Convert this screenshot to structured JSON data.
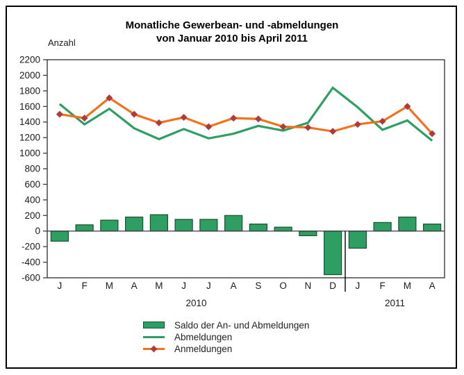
{
  "colors": {
    "green": "#2f9e63",
    "green_dark": "#15522f",
    "orange": "#f1711d",
    "marker_red": "#ad3c3c",
    "axis": "#3a3a3a",
    "text": "#1a1a1a",
    "background": "#ffffff"
  },
  "chart_data": {
    "type": "bar+line",
    "title_line1": "Monatliche Gewerbean- und -abmeldungen",
    "title_line2": "von Januar 2010 bis April 2011",
    "ylabel": "Anzahl",
    "xlabel": "",
    "ylim": [
      -600,
      2200
    ],
    "ytick_step": 200,
    "grid": false,
    "legend_position": "bottom",
    "categories": [
      "J",
      "F",
      "M",
      "A",
      "M",
      "J",
      "J",
      "A",
      "S",
      "O",
      "N",
      "D",
      "J",
      "F",
      "M",
      "A"
    ],
    "year_groups": [
      {
        "label": "2010",
        "months": 12
      },
      {
        "label": "2011",
        "months": 4
      }
    ],
    "series": [
      {
        "name": "Saldo der An- und Abmeldungen",
        "type": "bar",
        "values": [
          -130,
          80,
          140,
          180,
          210,
          150,
          150,
          200,
          90,
          50,
          -60,
          -560,
          -220,
          110,
          180,
          90
        ]
      },
      {
        "name": "Abmeldungen",
        "type": "line",
        "values": [
          1630,
          1370,
          1570,
          1320,
          1180,
          1310,
          1190,
          1250,
          1350,
          1290,
          1390,
          1840,
          1590,
          1300,
          1420,
          1160
        ]
      },
      {
        "name": "Anmeldungen",
        "type": "line+marker",
        "values": [
          1500,
          1450,
          1710,
          1500,
          1390,
          1460,
          1340,
          1450,
          1440,
          1340,
          1330,
          1280,
          1370,
          1410,
          1600,
          1250
        ]
      }
    ]
  }
}
